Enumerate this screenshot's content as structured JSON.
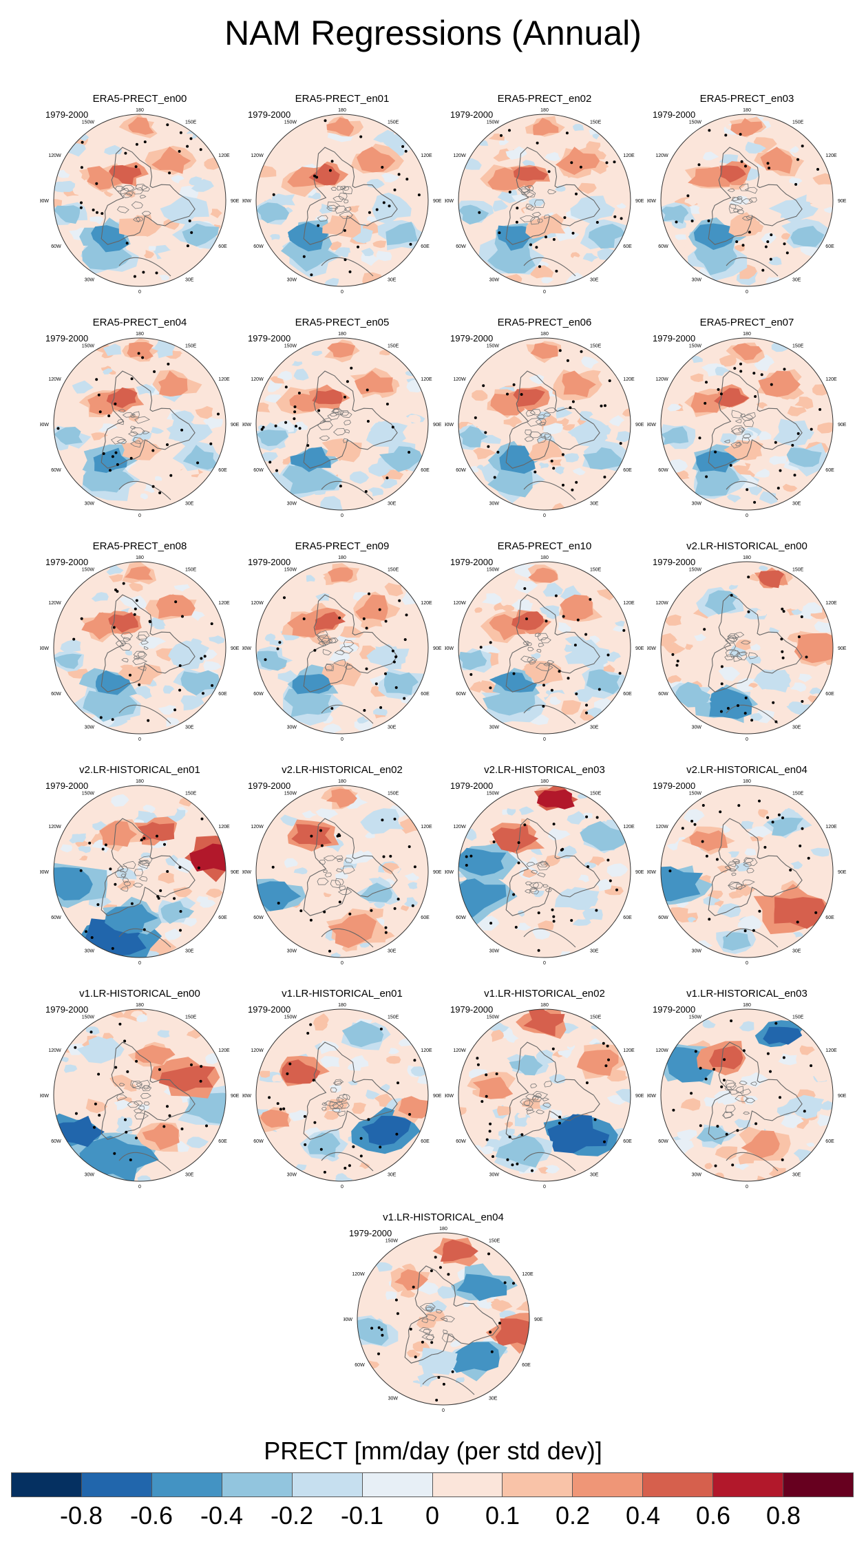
{
  "title": "NAM Regressions (Annual)",
  "panels": [
    {
      "title": "ERA5-PRECT_en00",
      "period": "1979-2000",
      "pattern": "era5"
    },
    {
      "title": "ERA5-PRECT_en01",
      "period": "1979-2000",
      "pattern": "era5"
    },
    {
      "title": "ERA5-PRECT_en02",
      "period": "1979-2000",
      "pattern": "era5"
    },
    {
      "title": "ERA5-PRECT_en03",
      "period": "1979-2000",
      "pattern": "era5"
    },
    {
      "title": "ERA5-PRECT_en04",
      "period": "1979-2000",
      "pattern": "era5"
    },
    {
      "title": "ERA5-PRECT_en05",
      "period": "1979-2000",
      "pattern": "era5"
    },
    {
      "title": "ERA5-PRECT_en06",
      "period": "1979-2000",
      "pattern": "era5"
    },
    {
      "title": "ERA5-PRECT_en07",
      "period": "1979-2000",
      "pattern": "era5"
    },
    {
      "title": "ERA5-PRECT_en08",
      "period": "1979-2000",
      "pattern": "era5"
    },
    {
      "title": "ERA5-PRECT_en09",
      "period": "1979-2000",
      "pattern": "era5"
    },
    {
      "title": "ERA5-PRECT_en10",
      "period": "1979-2000",
      "pattern": "era5"
    },
    {
      "title": "v2.LR-HISTORICAL_en00",
      "period": "1979-2000",
      "pattern": "v2a"
    },
    {
      "title": "v2.LR-HISTORICAL_en01",
      "period": "1979-2000",
      "pattern": "v2b"
    },
    {
      "title": "v2.LR-HISTORICAL_en02",
      "period": "1979-2000",
      "pattern": "v2c"
    },
    {
      "title": "v2.LR-HISTORICAL_en03",
      "period": "1979-2000",
      "pattern": "v2d"
    },
    {
      "title": "v2.LR-HISTORICAL_en04",
      "period": "1979-2000",
      "pattern": "v2e"
    },
    {
      "title": "v1.LR-HISTORICAL_en00",
      "period": "1979-2000",
      "pattern": "v1a"
    },
    {
      "title": "v1.LR-HISTORICAL_en01",
      "period": "1979-2000",
      "pattern": "v1b"
    },
    {
      "title": "v1.LR-HISTORICAL_en02",
      "period": "1979-2000",
      "pattern": "v1c"
    },
    {
      "title": "v1.LR-HISTORICAL_en03",
      "period": "1979-2000",
      "pattern": "v1d"
    },
    {
      "title": "v1.LR-HISTORICAL_en04",
      "period": "1979-2000",
      "pattern": "v1e"
    }
  ],
  "map_labels": {
    "lon_180": "180",
    "lon_150w": "150W",
    "lon_150e": "150E",
    "lon_120w": "120W",
    "lon_120e": "120E",
    "lon_90w": "90W",
    "lon_90e": "90E",
    "lon_60w": "60W",
    "lon_60e": "60E",
    "lon_30w": "30W",
    "lon_30e": "30E",
    "lon_0": "0"
  },
  "colorbar": {
    "title": "PRECT [mm/day (per std dev)]",
    "labels": [
      "-0.8",
      "-0.6",
      "-0.4",
      "-0.2",
      "-0.1",
      "0",
      "0.1",
      "0.2",
      "0.4",
      "0.6",
      "0.8"
    ],
    "colors": [
      "#053061",
      "#2166ac",
      "#4393c3",
      "#92c5de",
      "#c6dfef",
      "#e7eff6",
      "#fbe5da",
      "#f9c3a8",
      "#ef9677",
      "#d6604d",
      "#b2182b",
      "#67001f"
    ]
  },
  "chart_data": {
    "type": "heatmap",
    "title": "NAM Regressions (Annual)",
    "projection": "north polar stereographic",
    "variable": "PRECT",
    "units": "mm/day (per std dev)",
    "period": "1979-2000",
    "levels": [
      -0.8,
      -0.6,
      -0.4,
      -0.2,
      -0.1,
      0,
      0.1,
      0.2,
      0.4,
      0.6,
      0.8
    ],
    "panels": [
      "ERA5-PRECT_en00",
      "ERA5-PRECT_en01",
      "ERA5-PRECT_en02",
      "ERA5-PRECT_en03",
      "ERA5-PRECT_en04",
      "ERA5-PRECT_en05",
      "ERA5-PRECT_en06",
      "ERA5-PRECT_en07",
      "ERA5-PRECT_en08",
      "ERA5-PRECT_en09",
      "ERA5-PRECT_en10",
      "v2.LR-HISTORICAL_en00",
      "v2.LR-HISTORICAL_en01",
      "v2.LR-HISTORICAL_en02",
      "v2.LR-HISTORICAL_en03",
      "v2.LR-HISTORICAL_en04",
      "v1.LR-HISTORICAL_en00",
      "v1.LR-HISTORICAL_en01",
      "v1.LR-HISTORICAL_en02",
      "v1.LR-HISTORICAL_en03",
      "v1.LR-HISTORICAL_en04"
    ],
    "legend": "bottom"
  }
}
